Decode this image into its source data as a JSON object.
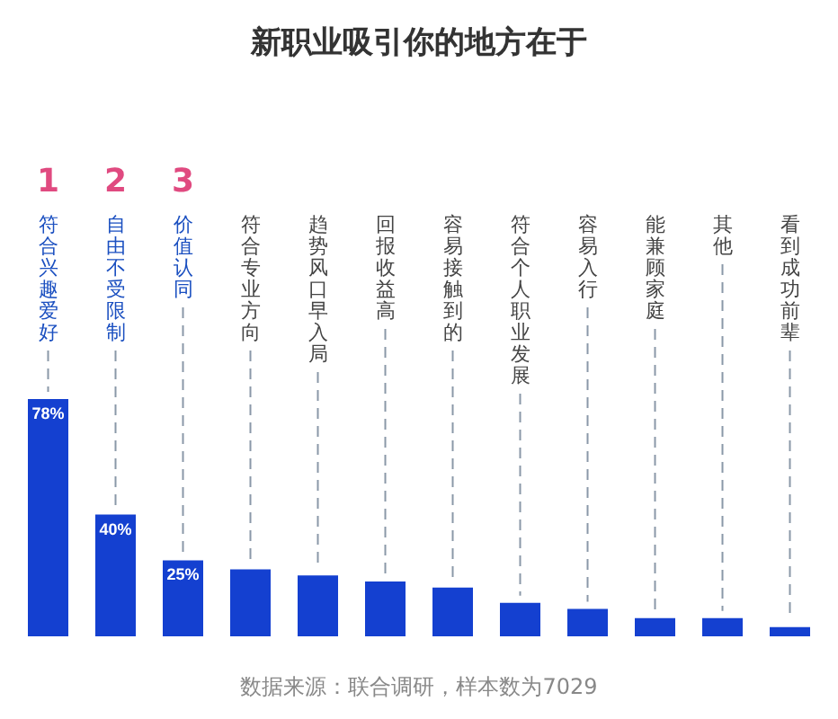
{
  "chart_data": {
    "type": "bar",
    "title": "新职业吸引你的地方在于",
    "categories": [
      "符合兴趣爱好",
      "自由不受限制",
      "价值认同",
      "符合专业方向",
      "趋势风口早入局",
      "回报收益高",
      "容易接触到的",
      "符合个人职业发展",
      "容易入行",
      "能兼顾家庭",
      "其他",
      "看到成功前辈"
    ],
    "values": [
      78,
      40,
      25,
      22,
      20,
      18,
      16,
      11,
      9,
      6,
      6,
      3
    ],
    "value_labels": [
      "78%",
      "40%",
      "25%",
      null,
      null,
      null,
      null,
      null,
      null,
      null,
      null,
      null
    ],
    "color": "#1440d0",
    "grid": "x",
    "annotations": [
      "1",
      "2",
      "3",
      "数据来源：联合调研，样本数为7029"
    ]
  }
}
